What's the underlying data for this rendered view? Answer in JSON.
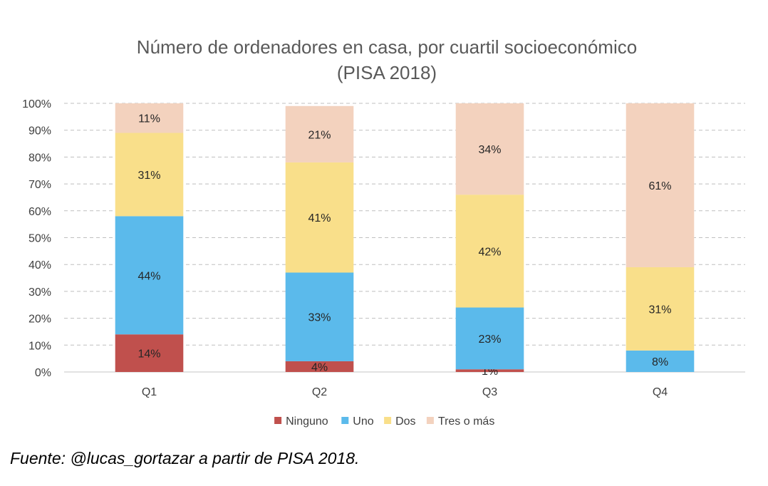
{
  "chart_data": {
    "type": "bar",
    "stacked": true,
    "title": "Número de ordenadores en casa, por cuartil socioeconómico",
    "subtitle": "(PISA 2018)",
    "categories": [
      "Q1",
      "Q2",
      "Q3",
      "Q4"
    ],
    "series": [
      {
        "name": "Ninguno",
        "color": "#C0504D",
        "values": [
          14,
          4,
          1,
          0
        ],
        "labels": [
          "14%",
          "4%",
          "1%",
          ""
        ]
      },
      {
        "name": "Uno",
        "color": "#5BBAEB",
        "values": [
          44,
          33,
          23,
          8
        ],
        "labels": [
          "44%",
          "33%",
          "23%",
          "8%"
        ]
      },
      {
        "name": "Dos",
        "color": "#F9DF8A",
        "values": [
          31,
          41,
          42,
          31
        ],
        "labels": [
          "31%",
          "41%",
          "42%",
          "31%"
        ]
      },
      {
        "name": "Tres o más",
        "color": "#F3D2BE",
        "values": [
          11,
          21,
          34,
          61
        ],
        "labels": [
          "11%",
          "21%",
          "34%",
          "61%"
        ]
      }
    ],
    "yticks": [
      "0%",
      "10%",
      "20%",
      "30%",
      "40%",
      "50%",
      "60%",
      "70%",
      "80%",
      "90%",
      "100%"
    ],
    "ylim": [
      0,
      100
    ],
    "grid": true,
    "legend": "bottom"
  },
  "source": "Fuente: @lucas_gortazar a partir de PISA 2018."
}
